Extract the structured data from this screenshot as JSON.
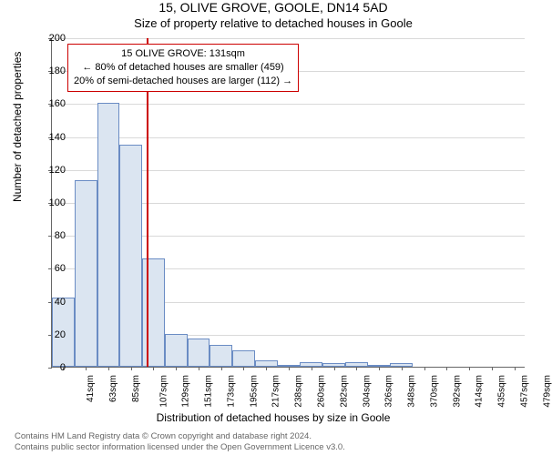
{
  "title": "15, OLIVE GROVE, GOOLE, DN14 5AD",
  "subtitle": "Size of property relative to detached houses in Goole",
  "ylabel": "Number of detached properties",
  "xlabel": "Distribution of detached houses by size in Goole",
  "chart": {
    "type": "histogram",
    "background_color": "#ffffff",
    "grid_color": "#d9d9d9",
    "bar_fill": "#dbe5f1",
    "bar_border": "#6a8cc4",
    "axis_color": "#666666",
    "ylim": [
      0,
      200
    ],
    "ytick_step": 20,
    "title_fontsize": 14,
    "label_fontsize": 12,
    "tick_fontsize": 11,
    "bar_width": 1.0,
    "categories": [
      "41sqm",
      "63sqm",
      "85sqm",
      "107sqm",
      "129sqm",
      "151sqm",
      "173sqm",
      "195sqm",
      "217sqm",
      "238sqm",
      "260sqm",
      "282sqm",
      "304sqm",
      "326sqm",
      "348sqm",
      "370sqm",
      "392sqm",
      "414sqm",
      "435sqm",
      "457sqm",
      "479sqm"
    ],
    "values": [
      42,
      113,
      160,
      135,
      66,
      20,
      17,
      13,
      10,
      4,
      1,
      3,
      2,
      3,
      1,
      2,
      0,
      0,
      0,
      0,
      0
    ],
    "marker": {
      "color": "#cc0000",
      "x_position": 131,
      "x_range": [
        41,
        490
      ]
    },
    "annotation": {
      "border_color": "#cc0000",
      "background_color": "#ffffff",
      "fontsize": 11,
      "lines": [
        "15 OLIVE GROVE: 131sqm",
        "← 80% of detached houses are smaller (459)",
        "20% of semi-detached houses are larger (112) →"
      ]
    }
  },
  "footer": {
    "line1": "Contains HM Land Registry data © Crown copyright and database right 2024.",
    "line2": "Contains public sector information licensed under the Open Government Licence v3.0.",
    "color": "#666666",
    "fontsize": 9.5
  }
}
